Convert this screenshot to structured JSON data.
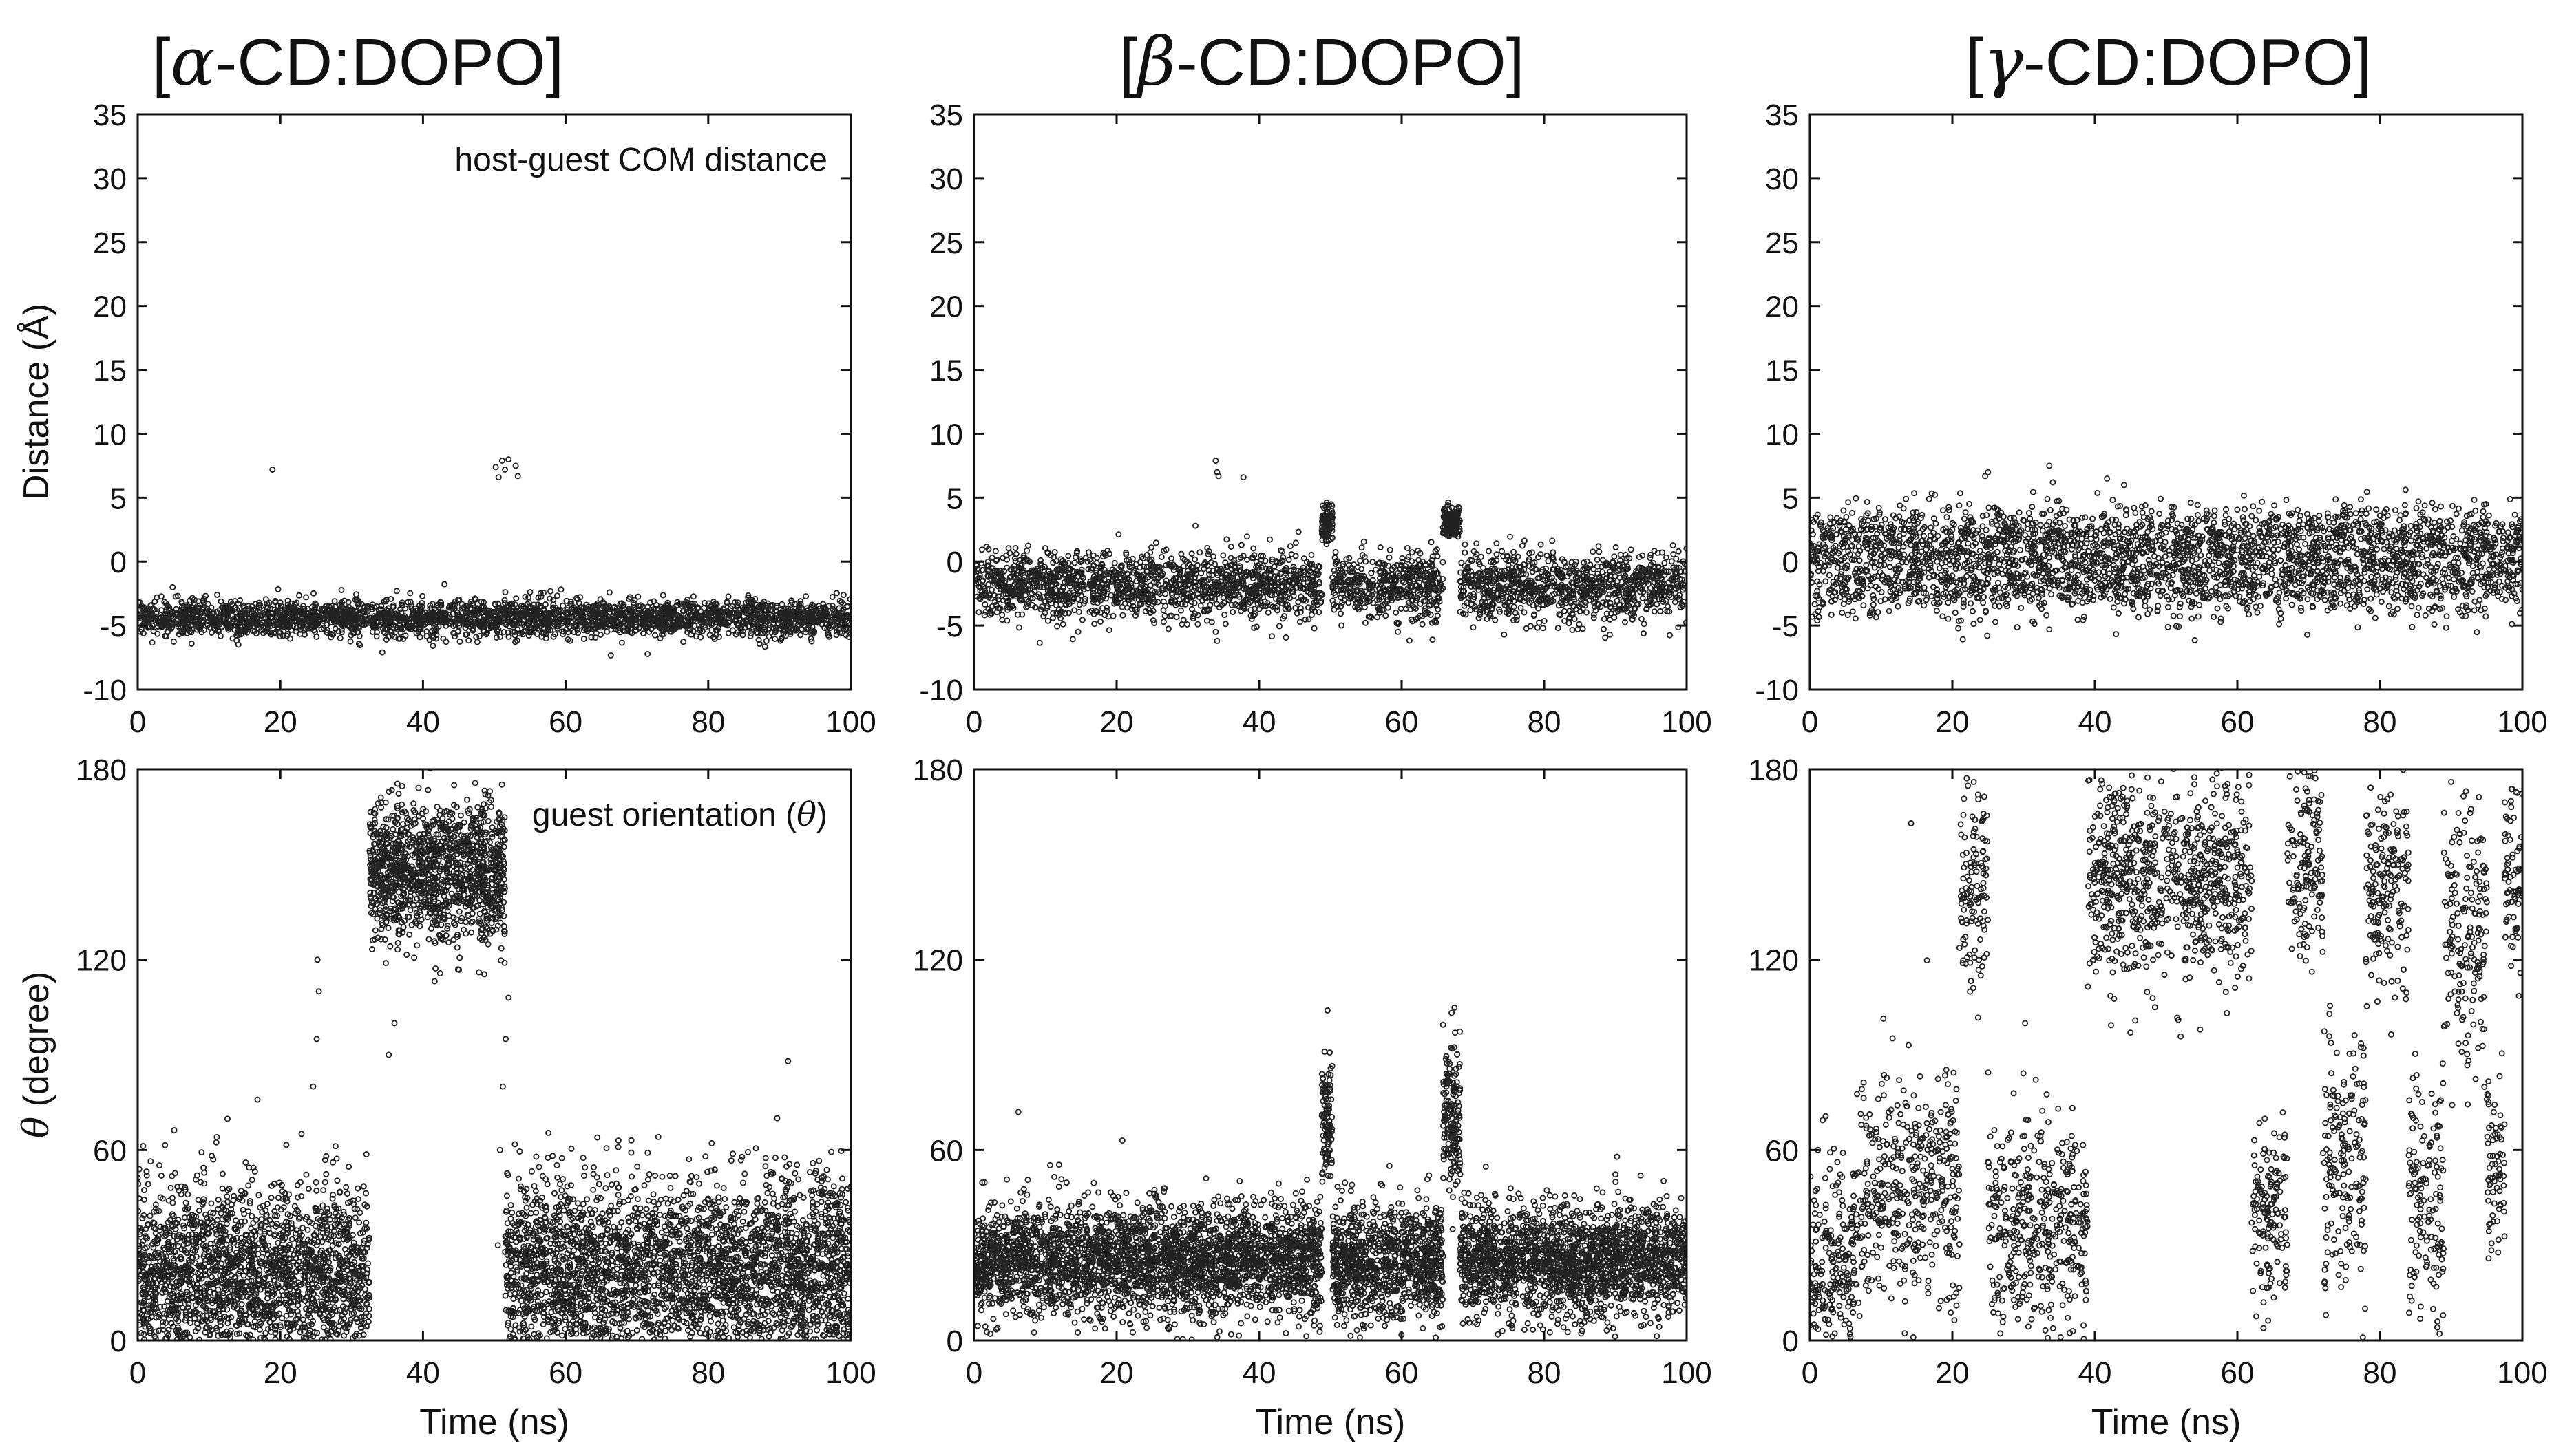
{
  "figure": {
    "columns": [
      {
        "bracket_open": "[",
        "greek": "α",
        "rest": "-CD:DOPO]"
      },
      {
        "bracket_open": "[",
        "greek": "β",
        "rest": "-CD:DOPO]"
      },
      {
        "bracket_open": "[",
        "greek": "γ",
        "rest": "-CD:DOPO]"
      }
    ],
    "point_color": "#222222"
  },
  "chart_data": [
    {
      "type": "scatter",
      "panel": "alpha-distance",
      "title": "[α-CD:DOPO]",
      "annotation": "host-guest COM distance",
      "xlabel": "Time (ns)",
      "ylabel": "Distance (Å)",
      "xlim": [
        0,
        100
      ],
      "ylim": [
        -10,
        35
      ],
      "xticks": [
        0,
        20,
        40,
        60,
        80,
        100
      ],
      "yticks": [
        -10,
        -5,
        0,
        5,
        10,
        15,
        20,
        25,
        30,
        35
      ],
      "segments": [
        {
          "x0": 0,
          "x1": 100,
          "mean": -4.4,
          "spread": 0.7,
          "density": 28
        }
      ],
      "outliers": [
        [
          18.9,
          7.2
        ],
        [
          50.2,
          7.4
        ],
        [
          50.6,
          6.6
        ],
        [
          51.1,
          7.9
        ],
        [
          51.5,
          7.2
        ],
        [
          52.0,
          8.0
        ],
        [
          53.0,
          7.5
        ],
        [
          53.3,
          6.7
        ]
      ]
    },
    {
      "type": "scatter",
      "panel": "beta-distance",
      "title": "[β-CD:DOPO]",
      "xlabel": "Time (ns)",
      "ylabel": "",
      "xlim": [
        0,
        100
      ],
      "ylim": [
        -10,
        35
      ],
      "xticks": [
        0,
        20,
        40,
        60,
        80,
        100
      ],
      "yticks": [
        -10,
        -5,
        0,
        5,
        10,
        15,
        20,
        25,
        30,
        35
      ],
      "segments": [
        {
          "x0": 0,
          "x1": 48.8,
          "mean": -1.9,
          "spread": 1.3,
          "density": 30
        },
        {
          "x0": 48.8,
          "x1": 50.3,
          "mean": 3.0,
          "spread": 0.7,
          "density": 55
        },
        {
          "x0": 50.3,
          "x1": 65.8,
          "mean": -1.9,
          "spread": 1.3,
          "density": 30
        },
        {
          "x0": 65.8,
          "x1": 68.2,
          "mean": 3.0,
          "spread": 0.6,
          "density": 55
        },
        {
          "x0": 68.2,
          "x1": 100,
          "mean": -1.9,
          "spread": 1.3,
          "density": 30
        }
      ],
      "outliers": [
        [
          33.9,
          7.9
        ],
        [
          34.1,
          7.0
        ],
        [
          34.3,
          6.7
        ],
        [
          37.8,
          6.6
        ],
        [
          33.9,
          -5.5
        ],
        [
          34.1,
          -6.2
        ]
      ]
    },
    {
      "type": "scatter",
      "panel": "gamma-distance",
      "title": "[γ-CD:DOPO]",
      "xlabel": "Time (ns)",
      "ylabel": "",
      "xlim": [
        0,
        100
      ],
      "ylim": [
        -10,
        35
      ],
      "xticks": [
        0,
        20,
        40,
        60,
        80,
        100
      ],
      "yticks": [
        -10,
        -5,
        0,
        5,
        10,
        15,
        20,
        25,
        30,
        35
      ],
      "segments": [
        {
          "x0": 0,
          "x1": 100,
          "mean": 1.8,
          "spread": 1.3,
          "density": 16
        },
        {
          "x0": 0,
          "x1": 100,
          "mean": -1.5,
          "spread": 1.4,
          "density": 16
        }
      ],
      "outliers": [
        [
          24.6,
          6.7
        ],
        [
          25.0,
          7.0
        ],
        [
          33.6,
          7.5
        ],
        [
          34.1,
          6.2
        ],
        [
          41.7,
          6.5
        ],
        [
          44.1,
          6.0
        ],
        [
          24.9,
          -5.8
        ],
        [
          33.6,
          -5.3
        ]
      ]
    },
    {
      "type": "scatter",
      "panel": "alpha-orientation",
      "annotation": "guest orientation (θ)",
      "xlabel": "Time (ns)",
      "ylabel": "θ (degree)",
      "xlim": [
        0,
        100
      ],
      "ylim": [
        0,
        180
      ],
      "xticks": [
        0,
        20,
        40,
        60,
        80,
        100
      ],
      "yticks": [
        0,
        60,
        120,
        180
      ],
      "segments": [
        {
          "x0": 0,
          "x1": 32.5,
          "mean": 22,
          "spread": 14,
          "density": 60
        },
        {
          "x0": 32.5,
          "x1": 51.5,
          "mean": 148,
          "spread": 11,
          "density": 70
        },
        {
          "x0": 51.5,
          "x1": 100,
          "mean": 22,
          "spread": 14,
          "density": 60
        }
      ],
      "outliers": [
        [
          24.6,
          80
        ],
        [
          25.1,
          95
        ],
        [
          25.4,
          110
        ],
        [
          25.2,
          120
        ],
        [
          35.2,
          90
        ],
        [
          36.0,
          100
        ],
        [
          50.8,
          60
        ],
        [
          51.2,
          80
        ],
        [
          51.6,
          95
        ],
        [
          52.0,
          108
        ],
        [
          50.5,
          30
        ],
        [
          91.2,
          88
        ]
      ]
    },
    {
      "type": "scatter",
      "panel": "beta-orientation",
      "xlabel": "Time (ns)",
      "ylabel": "",
      "xlim": [
        0,
        100
      ],
      "ylim": [
        0,
        180
      ],
      "xticks": [
        0,
        20,
        40,
        60,
        80,
        100
      ],
      "yticks": [
        0,
        60,
        120,
        180
      ],
      "segments": [
        {
          "x0": 0,
          "x1": 48.8,
          "mean": 25,
          "spread": 9,
          "density": 60
        },
        {
          "x0": 48.8,
          "x1": 50.3,
          "mean": 68,
          "spread": 10,
          "density": 70
        },
        {
          "x0": 50.3,
          "x1": 65.8,
          "mean": 25,
          "spread": 9,
          "density": 60
        },
        {
          "x0": 65.8,
          "x1": 68.2,
          "mean": 70,
          "spread": 12,
          "density": 70
        },
        {
          "x0": 68.2,
          "x1": 100,
          "mean": 25,
          "spread": 9,
          "density": 60
        }
      ],
      "outliers": [
        [
          6.2,
          72
        ],
        [
          49.6,
          104
        ],
        [
          67.5,
          97
        ],
        [
          67.1,
          92
        ],
        [
          20.8,
          63
        ],
        [
          58.3,
          55
        ]
      ]
    },
    {
      "type": "scatter",
      "panel": "gamma-orientation",
      "xlabel": "Time (ns)",
      "ylabel": "",
      "xlim": [
        0,
        100
      ],
      "ylim": [
        0,
        180
      ],
      "xticks": [
        0,
        20,
        40,
        60,
        80,
        100
      ],
      "yticks": [
        0,
        60,
        120,
        180
      ],
      "segments": [
        {
          "x0": 0,
          "x1": 7,
          "mean": 25,
          "spread": 18,
          "density": 30
        },
        {
          "x0": 7,
          "x1": 21,
          "mean": 48,
          "spread": 17,
          "density": 30
        },
        {
          "x0": 21,
          "x1": 25,
          "mean": 140,
          "spread": 16,
          "density": 30
        },
        {
          "x0": 25,
          "x1": 39,
          "mean": 35,
          "spread": 18,
          "density": 30
        },
        {
          "x0": 39,
          "x1": 62,
          "mean": 145,
          "spread": 16,
          "density": 36
        },
        {
          "x0": 62,
          "x1": 67,
          "mean": 40,
          "spread": 15,
          "density": 30
        },
        {
          "x0": 67,
          "x1": 72,
          "mean": 150,
          "spread": 14,
          "density": 30
        },
        {
          "x0": 72,
          "x1": 78,
          "mean": 55,
          "spread": 20,
          "density": 30
        },
        {
          "x0": 78,
          "x1": 84,
          "mean": 140,
          "spread": 16,
          "density": 30
        },
        {
          "x0": 84,
          "x1": 89,
          "mean": 40,
          "spread": 22,
          "density": 30
        },
        {
          "x0": 89,
          "x1": 95,
          "mean": 130,
          "spread": 20,
          "density": 30
        },
        {
          "x0": 95,
          "x1": 97.5,
          "mean": 55,
          "spread": 15,
          "density": 30
        },
        {
          "x0": 97.5,
          "x1": 100,
          "mean": 145,
          "spread": 14,
          "density": 30
        }
      ],
      "outliers": [
        [
          14.2,
          163
        ],
        [
          23.0,
          176
        ],
        [
          23.6,
          172
        ],
        [
          30.2,
          100
        ],
        [
          90.0,
          176
        ],
        [
          98.4,
          170
        ]
      ]
    }
  ]
}
